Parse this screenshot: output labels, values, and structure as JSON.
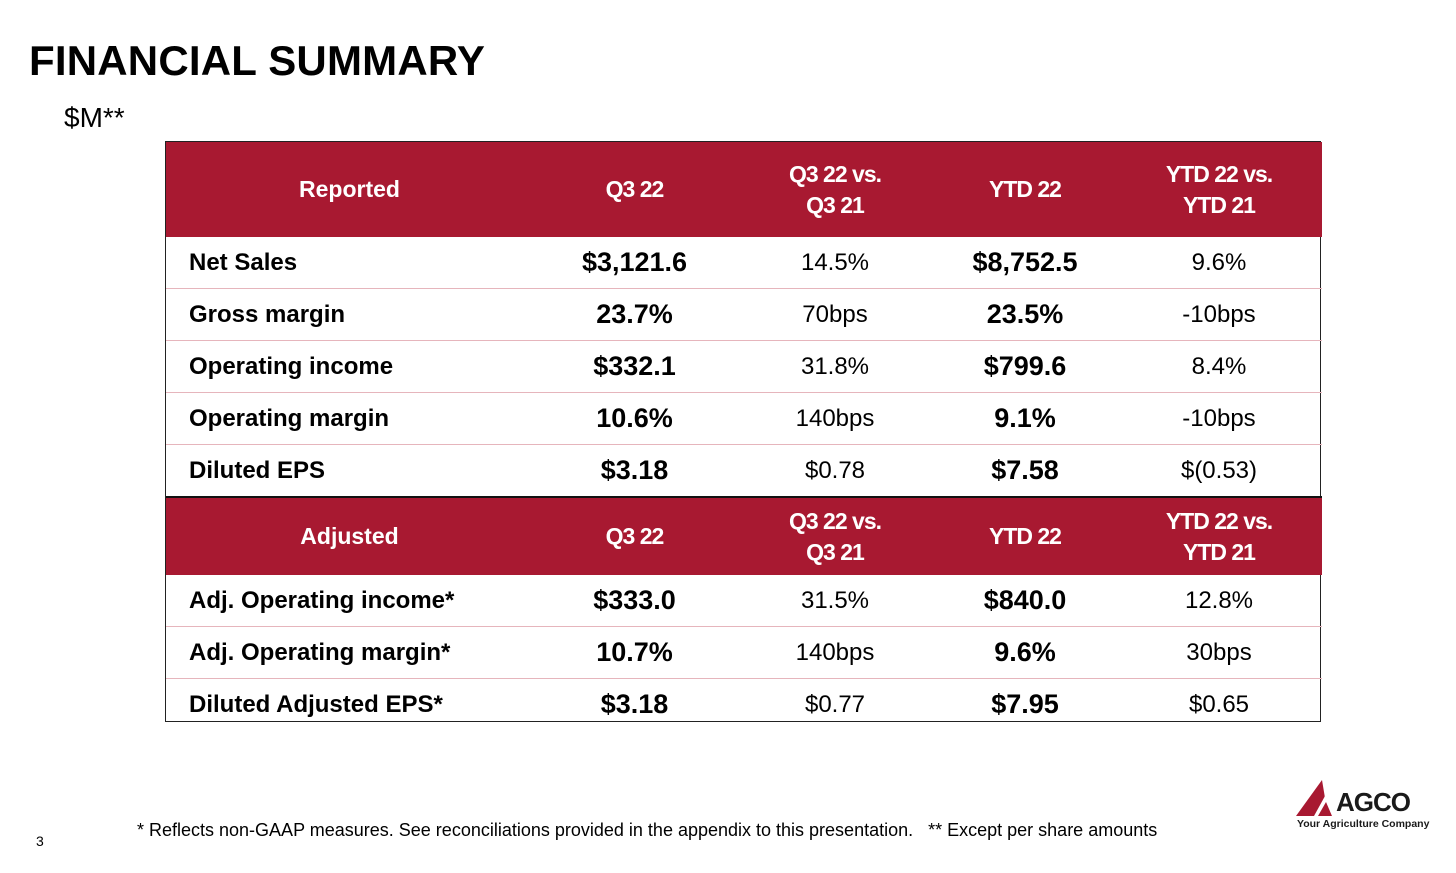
{
  "title": "FINANCIAL SUMMARY",
  "subtitle": "$M**",
  "reported": {
    "headers": [
      "Reported",
      "Q3 22",
      "Q3 22 vs.\nQ3 21",
      "YTD 22",
      "YTD 22 vs.\nYTD 21"
    ],
    "rows": [
      [
        "Net Sales",
        "$3,121.6",
        "14.5%",
        "$8,752.5",
        "9.6%"
      ],
      [
        "Gross margin",
        "23.7%",
        "70bps",
        "23.5%",
        "-10bps"
      ],
      [
        "Operating income",
        "$332.1",
        "31.8%",
        "$799.6",
        "8.4%"
      ],
      [
        "Operating margin",
        "10.6%",
        "140bps",
        "9.1%",
        "-10bps"
      ],
      [
        "Diluted EPS",
        "$3.18",
        "$0.78",
        "$7.58",
        "$(0.53)"
      ]
    ]
  },
  "adjusted": {
    "headers": [
      "Adjusted",
      "Q3 22",
      "Q3 22 vs.\nQ3 21",
      "YTD 22",
      "YTD 22 vs.\nYTD 21"
    ],
    "rows": [
      [
        "Adj. Operating income*",
        "$333.0",
        "31.5%",
        "$840.0",
        "12.8%"
      ],
      [
        "Adj. Operating margin*",
        "10.7%",
        "140bps",
        "9.6%",
        "30bps"
      ],
      [
        "Diluted Adjusted EPS*",
        "$3.18",
        "$0.77",
        "$7.95",
        "$0.65"
      ]
    ]
  },
  "footnote": "* Reflects non-GAAP measures. See reconciliations provided in the appendix to this presentation.   ** Except per share amounts",
  "page_number": "3",
  "logo": {
    "name": "AGCO",
    "tagline": "Your Agriculture Company",
    "icon": "agco-triangle-icon",
    "color": "#a81931"
  },
  "colors": {
    "header_bg": "#a81931",
    "header_text": "#ffffff",
    "row_divider": "#e6b5bc"
  }
}
